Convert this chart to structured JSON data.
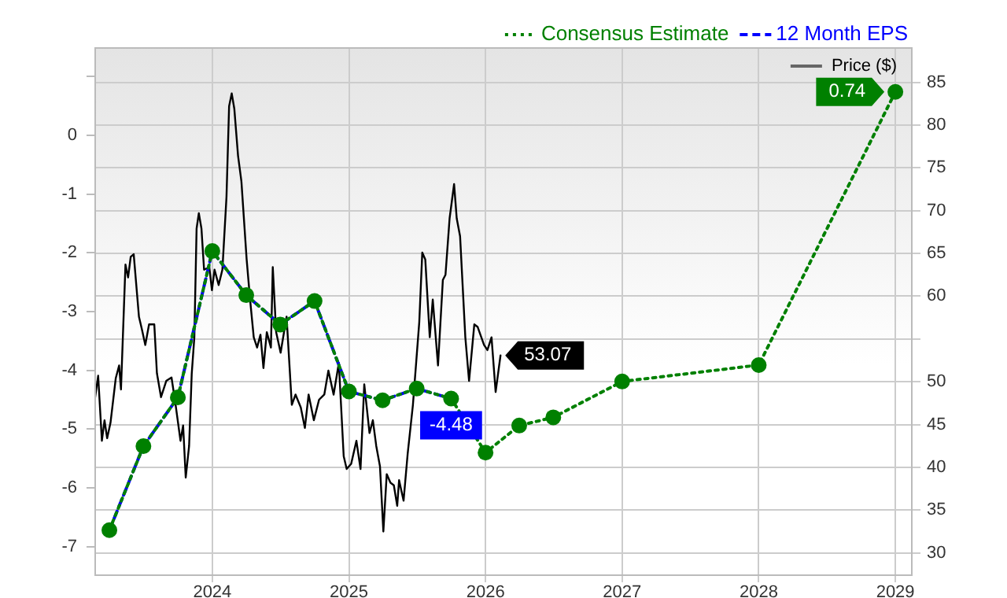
{
  "chart_data": {
    "type": "line",
    "xlim": [
      "2023-02-20",
      "2029-02-16"
    ],
    "xticks": [
      "2024",
      "2025",
      "2026",
      "2027",
      "2028",
      "2029"
    ],
    "ylim": [
      -7.5,
      1.5
    ],
    "yticks": [
      -7,
      -6,
      -5,
      -4,
      -3,
      -2,
      -1,
      0,
      {
        "value": 1,
        "label": null
      }
    ],
    "y2lim": [
      27.3,
      89.1
    ],
    "y2ticks": [
      30,
      35,
      40,
      45,
      50,
      {
        "value": 55,
        "label": null
      },
      60,
      65,
      70,
      75,
      80,
      85
    ],
    "grid": true,
    "legend": "top right",
    "marker": "circle",
    "series": [
      {
        "name": "Consensus Estimate",
        "color": "#008000",
        "line_style": "dotted",
        "x": [
          "2023-04-01",
          "2023-07-01",
          "2023-10-01",
          "2024-01-01",
          "2024-04-01",
          "2024-07-01",
          "2024-10-01",
          "2025-01-01",
          "2025-04-01",
          "2025-07-01",
          "2025-10-01",
          "2026-01-01",
          "2026-04-01",
          "2026-07-01",
          "2027-01-01",
          "2028-01-01",
          "2029-01-01"
        ],
        "values": [
          -6.72,
          -5.29,
          -4.46,
          -1.97,
          -2.72,
          -3.22,
          -2.82,
          -4.36,
          -4.51,
          -4.31,
          -4.48,
          -5.4,
          -4.94,
          -4.8,
          -4.19,
          -3.91,
          0.74
        ],
        "value_labels": [
          null,
          null,
          null,
          null,
          null,
          null,
          null,
          null,
          null,
          null,
          null,
          null,
          null,
          null,
          null,
          null,
          "0.74"
        ]
      },
      {
        "name": "12 Month EPS",
        "color": "#0000ff",
        "line_style": "dashed",
        "marker": "none",
        "x": [
          "2023-04-01",
          "2023-07-01",
          "2023-10-01",
          "2024-01-01",
          "2024-04-01",
          "2024-07-01",
          "2024-10-01",
          "2025-01-01",
          "2025-04-01",
          "2025-07-01",
          "2025-10-01"
        ],
        "values": [
          -6.72,
          -5.29,
          -4.46,
          -1.97,
          -2.72,
          -3.22,
          -2.82,
          -4.36,
          -4.51,
          -4.31,
          -4.48
        ],
        "value_labels": [
          null,
          null,
          null,
          null,
          null,
          null,
          null,
          null,
          null,
          null,
          "-4.48"
        ]
      },
      {
        "name": "Price ($)",
        "color": "#000000",
        "line_style": "solid",
        "marker": "none",
        "axis": "y2",
        "x": [
          "2023-02-21",
          "2023-03-02",
          "2023-03-12",
          "2023-03-19",
          "2023-03-26",
          "2023-04-04",
          "2023-04-18",
          "2023-04-27",
          "2023-05-02",
          "2023-05-14",
          "2023-05-21",
          "2023-05-28",
          "2023-06-05",
          "2023-06-19",
          "2023-06-27",
          "2023-07-06",
          "2023-07-16",
          "2023-07-30",
          "2023-08-06",
          "2023-08-17",
          "2023-08-31",
          "2023-09-14",
          "2023-09-24",
          "2023-10-08",
          "2023-10-15",
          "2023-10-22",
          "2023-10-31",
          "2023-11-07",
          "2023-11-14",
          "2023-11-20",
          "2023-11-26",
          "2023-12-03",
          "2023-12-10",
          "2023-12-24",
          "2023-12-31",
          "2024-01-07",
          "2024-01-18",
          "2024-01-28",
          "2024-02-08",
          "2024-02-15",
          "2024-02-22",
          "2024-02-29",
          "2024-03-10",
          "2024-03-19",
          "2024-04-02",
          "2024-04-11",
          "2024-04-21",
          "2024-04-30",
          "2024-05-09",
          "2024-05-17",
          "2024-05-26",
          "2024-06-06",
          "2024-06-11",
          "2024-06-20",
          "2024-07-02",
          "2024-07-18",
          "2024-08-01",
          "2024-08-11",
          "2024-08-25",
          "2024-09-05",
          "2024-09-15",
          "2024-09-29",
          "2024-10-13",
          "2024-10-27",
          "2024-11-07",
          "2024-11-21",
          "2024-12-05",
          "2024-12-18",
          "2024-12-26",
          "2025-01-07",
          "2025-01-21",
          "2025-02-01",
          "2025-02-11",
          "2025-02-25",
          "2025-03-06",
          "2025-03-15",
          "2025-03-25",
          "2025-04-03",
          "2025-04-12",
          "2025-04-22",
          "2025-05-01",
          "2025-05-10",
          "2025-05-15",
          "2025-05-27",
          "2025-06-07",
          "2025-06-21",
          "2025-07-08",
          "2025-07-16",
          "2025-07-24",
          "2025-08-05",
          "2025-08-13",
          "2025-08-27",
          "2025-09-09",
          "2025-09-16",
          "2025-09-27",
          "2025-10-09",
          "2025-10-16",
          "2025-10-25",
          "2025-11-08",
          "2025-11-18",
          "2025-12-02",
          "2025-12-11",
          "2025-12-28",
          "2026-01-06",
          "2026-01-17",
          "2026-01-28",
          "2026-02-10"
        ],
        "values": [
          47.9,
          50.7,
          43.1,
          45.5,
          43.4,
          45.2,
          50.4,
          51.9,
          49.1,
          63.7,
          62.2,
          64.6,
          64.9,
          57.6,
          56.1,
          54.3,
          56.7,
          56.7,
          51.0,
          48.2,
          50.1,
          50.5,
          47.6,
          43.1,
          44.9,
          38.8,
          42.5,
          50.9,
          55.2,
          67.9,
          69.7,
          67.9,
          63.1,
          63.4,
          60.7,
          63.1,
          61.3,
          63.1,
          71.6,
          82.2,
          83.7,
          81.9,
          76.4,
          73.4,
          64.3,
          59.7,
          55.2,
          54.0,
          55.5,
          51.6,
          55.8,
          54.0,
          63.4,
          55.8,
          53.4,
          57.6,
          47.3,
          48.5,
          47.0,
          44.6,
          48.5,
          45.5,
          47.9,
          48.5,
          51.3,
          48.5,
          52.2,
          41.3,
          39.8,
          40.4,
          43.1,
          39.8,
          49.7,
          44.0,
          45.5,
          42.5,
          40.1,
          32.5,
          39.2,
          38.2,
          37.9,
          35.5,
          38.5,
          36.1,
          41.6,
          47.3,
          57.0,
          65.1,
          64.3,
          55.2,
          59.6,
          51.9,
          61.9,
          62.5,
          69.1,
          73.1,
          69.1,
          67.0,
          55.2,
          50.1,
          56.7,
          56.4,
          54.3,
          53.7,
          55.2,
          48.8,
          53.07
        ],
        "value_labels": [
          null,
          null,
          null,
          null,
          null,
          null,
          null,
          null,
          null,
          null,
          null,
          null,
          null,
          null,
          null,
          null,
          null,
          null,
          null,
          null,
          null,
          null,
          null,
          null,
          null,
          null,
          null,
          null,
          null,
          null,
          null,
          null,
          null,
          null,
          null,
          null,
          null,
          null,
          null,
          null,
          null,
          null,
          null,
          null,
          null,
          null,
          null,
          null,
          null,
          null,
          null,
          null,
          null,
          null,
          null,
          null,
          null,
          null,
          null,
          null,
          null,
          null,
          null,
          null,
          null,
          null,
          null,
          null,
          null,
          null,
          null,
          null,
          null,
          null,
          null,
          null,
          null,
          null,
          null,
          null,
          null,
          null,
          null,
          null,
          null,
          null,
          null,
          null,
          null,
          null,
          null,
          null,
          null,
          null,
          null,
          null,
          null,
          null,
          null,
          null,
          null,
          null,
          null,
          null,
          null,
          null,
          "53.07"
        ]
      }
    ]
  }
}
